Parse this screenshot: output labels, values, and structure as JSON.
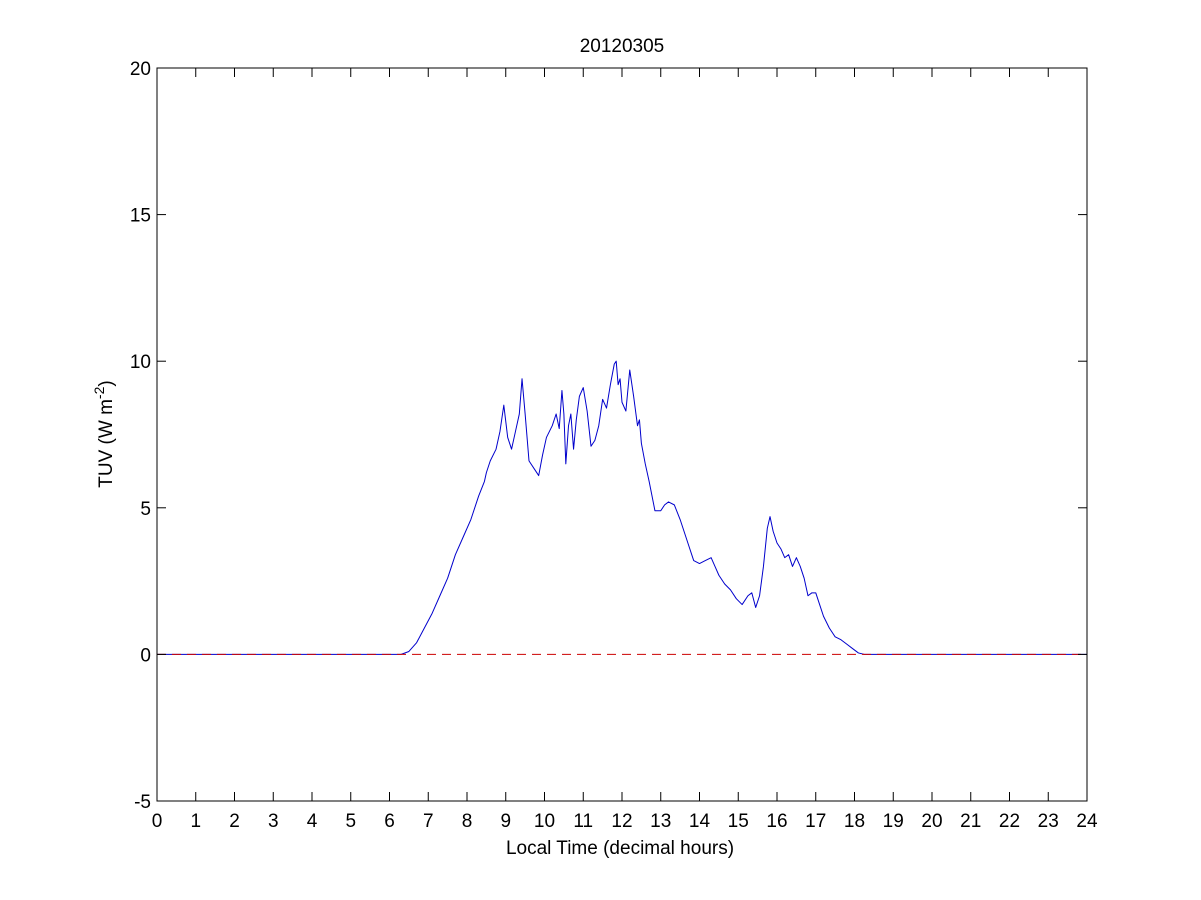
{
  "chart_data": {
    "type": "line",
    "title": "20120305",
    "xlabel": "Local Time (decimal hours)",
    "ylabel": {
      "base": "TUV (W m",
      "superscript": "-2",
      "close": ")"
    },
    "xlim": [
      0,
      24
    ],
    "ylim": [
      -5,
      20
    ],
    "xticks": [
      "0",
      "1",
      "2",
      "3",
      "4",
      "5",
      "6",
      "7",
      "8",
      "9",
      "10",
      "11",
      "12",
      "13",
      "14",
      "15",
      "16",
      "17",
      "18",
      "19",
      "20",
      "21",
      "22",
      "23",
      "24"
    ],
    "yticks": [
      "-5",
      "0",
      "5",
      "10",
      "15",
      "20"
    ],
    "grid": false,
    "colors": {
      "series": "#0000cc",
      "baseline": "#cc0000",
      "axes": "#000000"
    },
    "series": [
      {
        "style": "solid",
        "x": [
          0,
          6.3,
          6.5,
          6.7,
          6.9,
          7.1,
          7.3,
          7.5,
          7.7,
          7.9,
          8.1,
          8.3,
          8.45,
          8.5,
          8.6,
          8.75,
          8.85,
          8.95,
          9.05,
          9.15,
          9.25,
          9.35,
          9.42,
          9.5,
          9.6,
          9.75,
          9.85,
          9.95,
          10.05,
          10.2,
          10.3,
          10.38,
          10.45,
          10.5,
          10.55,
          10.62,
          10.68,
          10.75,
          10.82,
          10.9,
          11.0,
          11.1,
          11.2,
          11.3,
          11.4,
          11.5,
          11.6,
          11.7,
          11.8,
          11.85,
          11.9,
          11.95,
          12.0,
          12.1,
          12.2,
          12.3,
          12.4,
          12.45,
          12.5,
          12.6,
          12.7,
          12.85,
          13.0,
          13.1,
          13.2,
          13.35,
          13.5,
          13.7,
          13.85,
          14.0,
          14.15,
          14.3,
          14.4,
          14.5,
          14.65,
          14.8,
          14.95,
          15.1,
          15.25,
          15.35,
          15.45,
          15.55,
          15.65,
          15.75,
          15.82,
          15.9,
          16.0,
          16.1,
          16.2,
          16.3,
          16.4,
          16.5,
          16.6,
          16.7,
          16.8,
          16.9,
          17.0,
          17.1,
          17.2,
          17.35,
          17.5,
          17.65,
          17.8,
          17.95,
          18.1,
          18.25,
          18.4,
          24
        ],
        "y": [
          0,
          0,
          0.1,
          0.4,
          0.9,
          1.4,
          2.0,
          2.6,
          3.4,
          4.0,
          4.6,
          5.4,
          5.9,
          6.2,
          6.6,
          7.0,
          7.6,
          8.5,
          7.4,
          7.0,
          7.6,
          8.2,
          9.4,
          8.2,
          6.6,
          6.3,
          6.1,
          6.8,
          7.4,
          7.8,
          8.2,
          7.7,
          9.0,
          8.2,
          6.5,
          7.8,
          8.2,
          7.0,
          8.0,
          8.8,
          9.1,
          8.3,
          7.1,
          7.3,
          7.8,
          8.7,
          8.4,
          9.2,
          9.9,
          10.0,
          9.2,
          9.4,
          8.6,
          8.3,
          9.7,
          8.8,
          7.8,
          8.0,
          7.2,
          6.5,
          5.9,
          4.9,
          4.9,
          5.1,
          5.2,
          5.1,
          4.6,
          3.8,
          3.2,
          3.1,
          3.2,
          3.3,
          3.0,
          2.7,
          2.4,
          2.2,
          1.9,
          1.7,
          2.0,
          2.1,
          1.6,
          2.0,
          3.0,
          4.3,
          4.7,
          4.2,
          3.8,
          3.6,
          3.3,
          3.4,
          3.0,
          3.3,
          3.0,
          2.6,
          2.0,
          2.1,
          2.1,
          1.7,
          1.3,
          0.9,
          0.6,
          0.5,
          0.35,
          0.2,
          0.05,
          0,
          0,
          0
        ]
      },
      {
        "style": "dashed",
        "x": [
          0,
          24
        ],
        "y": [
          0,
          0
        ]
      }
    ]
  }
}
